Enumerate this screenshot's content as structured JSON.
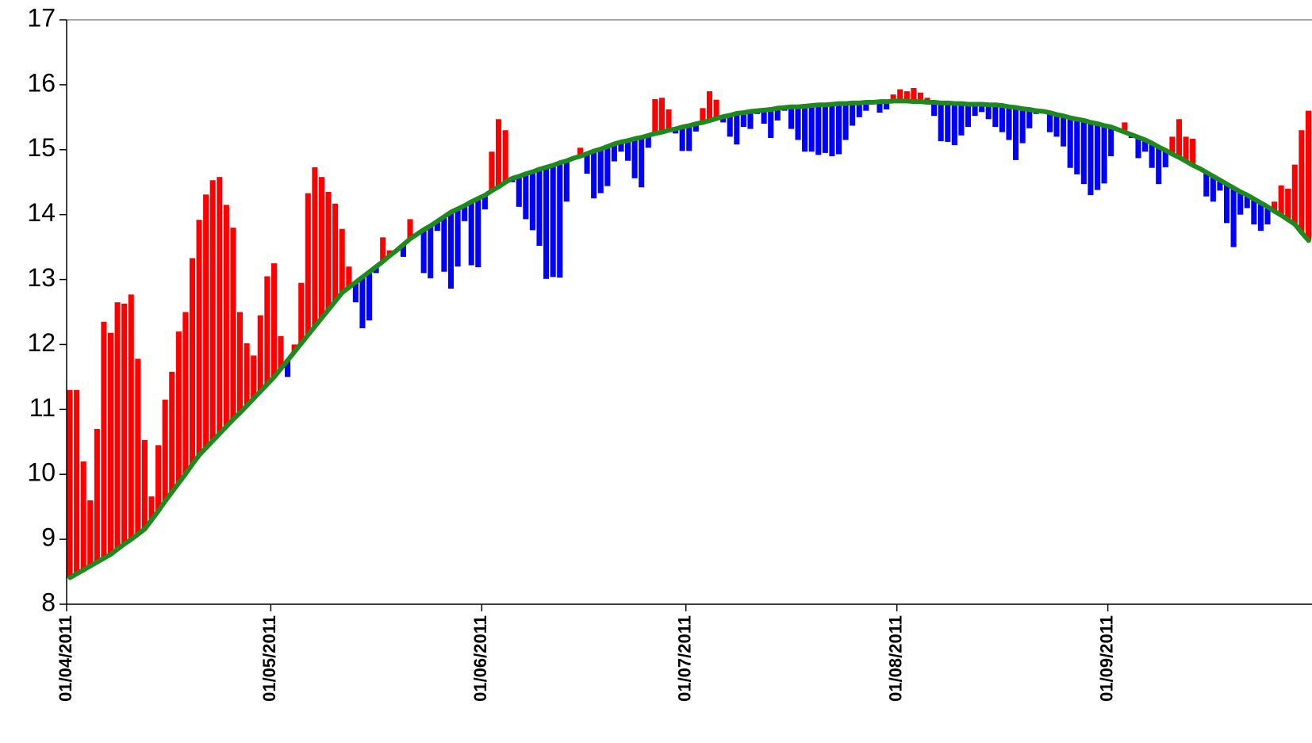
{
  "chart_data": {
    "type": "bar",
    "categories": [
      "01/04/2011",
      null,
      null,
      null,
      null,
      null,
      null,
      null,
      null,
      null,
      null,
      null,
      null,
      null,
      null,
      null,
      null,
      null,
      null,
      null,
      null,
      null,
      null,
      null,
      null,
      null,
      null,
      null,
      null,
      null,
      "01/05/2011",
      null,
      null,
      null,
      null,
      null,
      null,
      null,
      null,
      null,
      null,
      null,
      null,
      null,
      null,
      null,
      null,
      null,
      null,
      null,
      null,
      null,
      null,
      null,
      null,
      null,
      null,
      null,
      null,
      null,
      null,
      "01/06/2011",
      null,
      null,
      null,
      null,
      null,
      null,
      null,
      null,
      null,
      null,
      null,
      null,
      null,
      null,
      null,
      null,
      null,
      null,
      null,
      null,
      null,
      null,
      null,
      null,
      null,
      null,
      null,
      null,
      null,
      "01/07/2011",
      null,
      null,
      null,
      null,
      null,
      null,
      null,
      null,
      null,
      null,
      null,
      null,
      null,
      null,
      null,
      null,
      null,
      null,
      null,
      null,
      null,
      null,
      null,
      null,
      null,
      null,
      null,
      null,
      null,
      null,
      "01/08/2011",
      null,
      null,
      null,
      null,
      null,
      null,
      null,
      null,
      null,
      null,
      null,
      null,
      null,
      null,
      null,
      null,
      null,
      null,
      null,
      null,
      null,
      null,
      null,
      null,
      null,
      null,
      null,
      null,
      null,
      null,
      "01/09/2011",
      null,
      null,
      null,
      null,
      null,
      null,
      null,
      null,
      null,
      null,
      null,
      null,
      null,
      null,
      null,
      null,
      null,
      null,
      null,
      null,
      null,
      null,
      null,
      null,
      null,
      null,
      null,
      null,
      null
    ],
    "values": [
      11.3,
      11.3,
      10.2,
      9.6,
      10.7,
      12.35,
      12.18,
      12.65,
      12.63,
      12.77,
      11.78,
      10.53,
      9.66,
      10.45,
      11.15,
      11.58,
      12.2,
      12.5,
      13.33,
      13.92,
      14.31,
      14.53,
      14.58,
      14.15,
      13.8,
      12.5,
      12.02,
      11.83,
      12.45,
      13.05,
      13.25,
      12.13,
      11.5,
      12.0,
      12.95,
      14.33,
      14.73,
      14.58,
      14.35,
      14.17,
      13.78,
      13.2,
      12.65,
      12.25,
      12.37,
      13.1,
      13.65,
      13.45,
      13.45,
      13.35,
      13.93,
      13.7,
      13.1,
      13.02,
      13.75,
      13.12,
      12.86,
      13.2,
      13.9,
      13.22,
      13.19,
      14.08,
      14.97,
      15.47,
      15.3,
      14.5,
      14.12,
      13.93,
      13.76,
      13.52,
      13.01,
      13.04,
      13.03,
      14.2,
      14.85,
      15.03,
      14.63,
      14.25,
      14.33,
      14.44,
      14.82,
      14.97,
      14.83,
      14.56,
      14.42,
      15.03,
      15.78,
      15.8,
      15.62,
      15.25,
      14.98,
      14.98,
      15.28,
      15.64,
      15.9,
      15.77,
      15.42,
      15.2,
      15.08,
      15.35,
      15.32,
      15.55,
      15.4,
      15.18,
      15.45,
      15.6,
      15.32,
      15.15,
      14.97,
      14.97,
      14.92,
      14.95,
      14.9,
      14.93,
      15.15,
      15.37,
      15.5,
      15.6,
      15.7,
      15.57,
      15.62,
      15.85,
      15.93,
      15.9,
      15.95,
      15.88,
      15.8,
      15.52,
      15.13,
      15.12,
      15.07,
      15.22,
      15.35,
      15.52,
      15.58,
      15.47,
      15.35,
      15.27,
      15.15,
      14.84,
      15.1,
      15.33,
      15.55,
      15.6,
      15.27,
      15.2,
      15.05,
      14.72,
      14.62,
      14.47,
      14.3,
      14.38,
      14.48,
      14.9,
      15.3,
      15.42,
      15.18,
      14.87,
      14.97,
      14.72,
      14.47,
      14.73,
      15.2,
      15.47,
      15.2,
      15.17,
      14.7,
      14.28,
      14.2,
      14.37,
      13.87,
      13.5,
      14.0,
      14.1,
      13.85,
      13.75,
      13.85,
      14.2,
      14.45,
      14.4,
      14.77,
      15.3,
      15.6
    ],
    "mean": [
      8.41,
      8.47,
      8.53,
      8.59,
      8.65,
      8.71,
      8.77,
      8.85,
      8.93,
      9.0,
      9.08,
      9.16,
      9.3,
      9.44,
      9.59,
      9.73,
      9.87,
      10.01,
      10.16,
      10.3,
      10.41,
      10.52,
      10.63,
      10.74,
      10.85,
      10.95,
      11.06,
      11.17,
      11.28,
      11.39,
      11.5,
      11.63,
      11.76,
      11.89,
      12.02,
      12.15,
      12.28,
      12.41,
      12.54,
      12.67,
      12.8,
      12.88,
      12.96,
      13.04,
      13.12,
      13.2,
      13.28,
      13.37,
      13.45,
      13.54,
      13.63,
      13.7,
      13.77,
      13.83,
      13.9,
      13.97,
      14.04,
      14.09,
      14.14,
      14.2,
      14.25,
      14.3,
      14.37,
      14.43,
      14.5,
      14.56,
      14.59,
      14.63,
      14.66,
      14.7,
      14.73,
      14.76,
      14.8,
      14.83,
      14.87,
      14.9,
      14.94,
      14.98,
      15.01,
      15.05,
      15.09,
      15.12,
      15.14,
      15.17,
      15.19,
      15.22,
      15.25,
      15.27,
      15.3,
      15.32,
      15.35,
      15.37,
      15.4,
      15.42,
      15.45,
      15.48,
      15.51,
      15.53,
      15.56,
      15.57,
      15.59,
      15.6,
      15.61,
      15.62,
      15.64,
      15.65,
      15.66,
      15.66,
      15.67,
      15.68,
      15.69,
      15.69,
      15.7,
      15.71,
      15.71,
      15.72,
      15.72,
      15.73,
      15.73,
      15.74,
      15.74,
      15.75,
      15.75,
      15.75,
      15.74,
      15.74,
      15.73,
      15.73,
      15.72,
      15.72,
      15.71,
      15.71,
      15.7,
      15.7,
      15.7,
      15.69,
      15.69,
      15.68,
      15.66,
      15.65,
      15.63,
      15.62,
      15.6,
      15.59,
      15.57,
      15.54,
      15.52,
      15.49,
      15.47,
      15.45,
      15.42,
      15.4,
      15.37,
      15.35,
      15.31,
      15.27,
      15.23,
      15.19,
      15.15,
      15.1,
      15.04,
      14.99,
      14.93,
      14.88,
      14.82,
      14.76,
      14.71,
      14.65,
      14.59,
      14.53,
      14.47,
      14.41,
      14.35,
      14.3,
      14.24,
      14.18,
      14.12,
      14.05,
      13.99,
      13.92,
      13.85,
      13.72,
      13.6
    ],
    "above_color": "#ff0000",
    "below_color": "#0000ff",
    "line_color": "#1e8a1e",
    "ylim": [
      8,
      17
    ],
    "yticks": [
      8,
      9,
      10,
      11,
      12,
      13,
      14,
      15,
      16,
      17
    ]
  }
}
